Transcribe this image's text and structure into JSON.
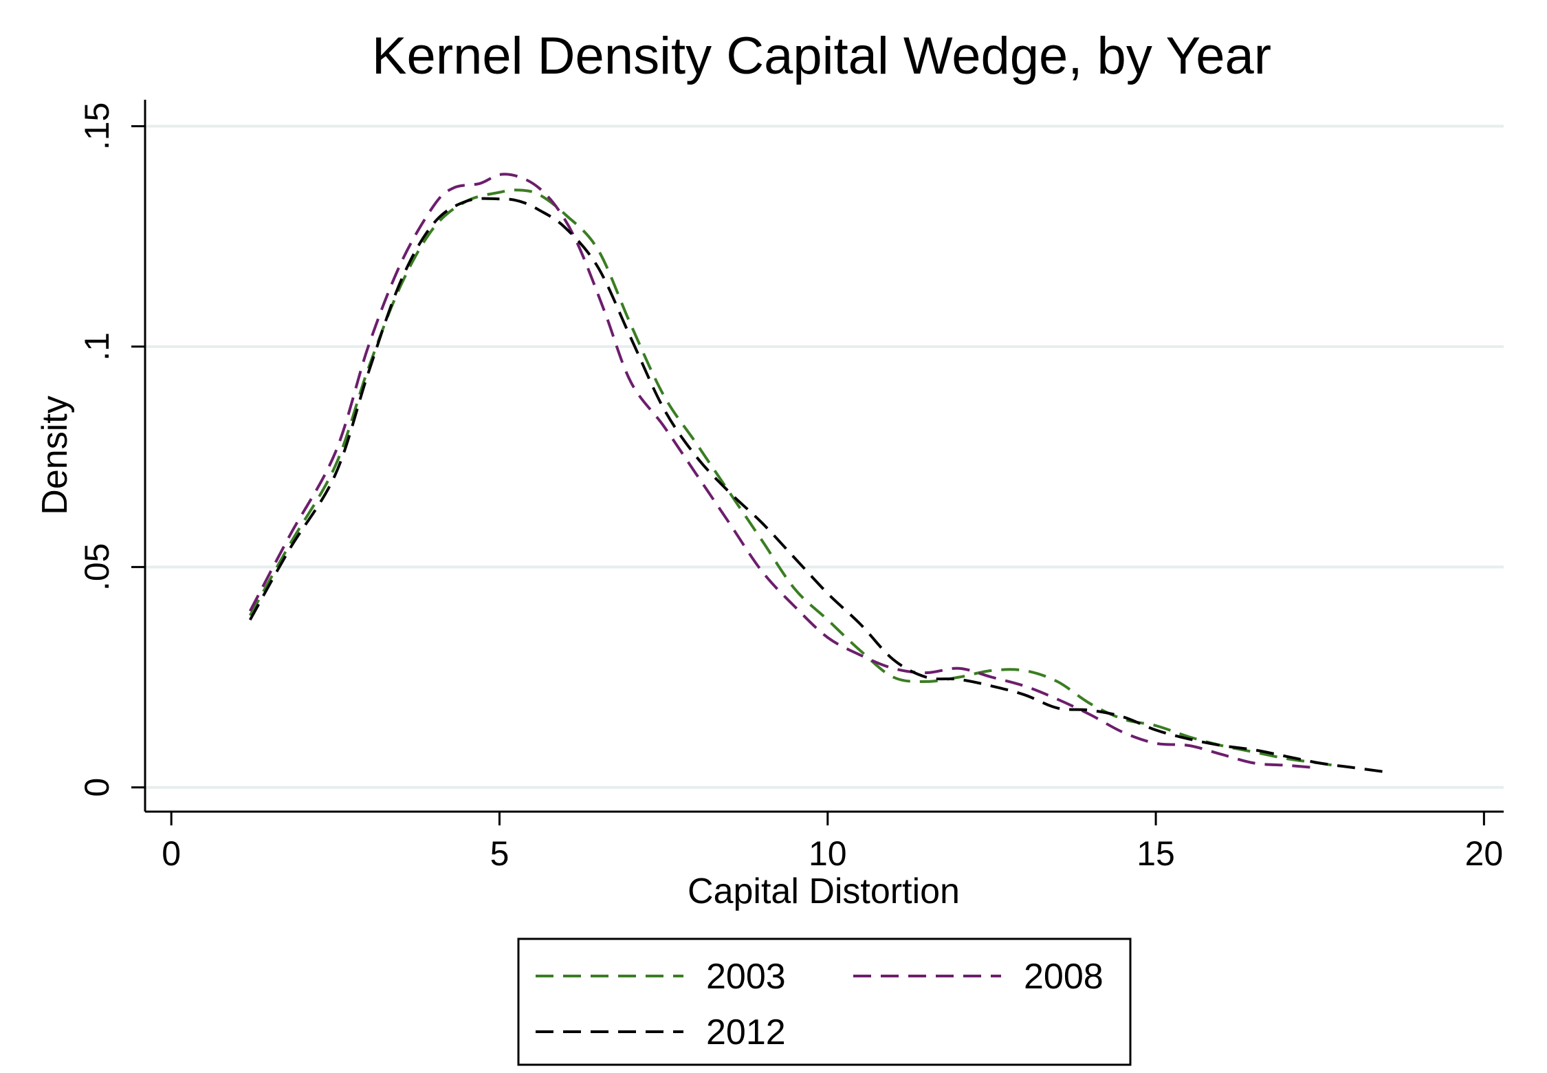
{
  "chart_data": {
    "type": "line",
    "title": "Kernel Density Capital Wedge, by Year",
    "xlabel": "Capital Distortion",
    "ylabel": "Density",
    "xlim": [
      -0.4,
      20.3
    ],
    "ylim": [
      -0.0055,
      0.156
    ],
    "xticks": [
      0,
      5,
      10,
      15,
      20
    ],
    "xtick_labels": [
      "0",
      "5",
      "10",
      "15",
      "20"
    ],
    "yticks": [
      0,
      0.05,
      0.1,
      0.15
    ],
    "ytick_labels": [
      "0",
      ".05",
      ".1",
      ".15"
    ],
    "grid": "horizontal",
    "legend_position": "bottom",
    "series": [
      {
        "name": "2003",
        "color": "#3a7d22",
        "x": [
          1.2,
          1.8,
          2.5,
          3.0,
          3.5,
          4.0,
          4.5,
          5.0,
          5.3,
          5.6,
          6.0,
          6.5,
          7.0,
          7.5,
          8.0,
          8.5,
          9.0,
          9.5,
          10.0,
          10.5,
          11.0,
          11.5,
          12.0,
          12.5,
          13.0,
          13.5,
          14.0,
          14.5,
          15.0,
          15.5,
          16.0,
          16.5,
          17.0,
          17.5,
          17.7
        ],
        "values": [
          0.039,
          0.055,
          0.073,
          0.095,
          0.114,
          0.127,
          0.133,
          0.135,
          0.1355,
          0.1345,
          0.13,
          0.122,
          0.105,
          0.089,
          0.078,
          0.067,
          0.056,
          0.045,
          0.038,
          0.031,
          0.025,
          0.024,
          0.025,
          0.0265,
          0.0265,
          0.024,
          0.019,
          0.0155,
          0.014,
          0.0115,
          0.0095,
          0.008,
          0.0065,
          0.0055,
          0.005
        ]
      },
      {
        "name": "2008",
        "color": "#6c1e6c",
        "x": [
          1.2,
          1.8,
          2.5,
          3.0,
          3.5,
          4.0,
          4.3,
          4.7,
          5.0,
          5.3,
          5.6,
          5.9,
          6.2,
          6.6,
          7.0,
          7.5,
          8.0,
          8.5,
          9.0,
          9.5,
          10.0,
          10.5,
          11.0,
          11.5,
          12.0,
          12.5,
          13.0,
          13.5,
          14.0,
          14.5,
          15.0,
          15.5,
          16.0,
          16.5,
          17.0,
          17.4
        ],
        "values": [
          0.04,
          0.057,
          0.076,
          0.1,
          0.119,
          0.132,
          0.136,
          0.137,
          0.139,
          0.1385,
          0.136,
          0.131,
          0.123,
          0.108,
          0.092,
          0.082,
          0.071,
          0.06,
          0.049,
          0.041,
          0.034,
          0.03,
          0.027,
          0.026,
          0.027,
          0.025,
          0.023,
          0.02,
          0.0165,
          0.0125,
          0.01,
          0.0095,
          0.0075,
          0.0055,
          0.005,
          0.0045
        ]
      },
      {
        "name": "2012",
        "color": "#000000",
        "x": [
          1.2,
          1.8,
          2.5,
          3.0,
          3.5,
          4.0,
          4.5,
          5.0,
          5.3,
          5.6,
          6.0,
          6.5,
          7.0,
          7.5,
          8.0,
          8.5,
          9.0,
          9.5,
          10.0,
          10.5,
          11.0,
          11.5,
          12.0,
          12.5,
          13.0,
          13.5,
          14.0,
          14.5,
          15.0,
          15.5,
          16.0,
          16.5,
          17.0,
          17.5,
          18.0,
          18.5
        ],
        "values": [
          0.038,
          0.054,
          0.071,
          0.094,
          0.115,
          0.128,
          0.133,
          0.1335,
          0.133,
          0.131,
          0.127,
          0.118,
          0.102,
          0.086,
          0.075,
          0.067,
          0.06,
          0.052,
          0.044,
          0.037,
          0.029,
          0.025,
          0.0245,
          0.023,
          0.021,
          0.018,
          0.0175,
          0.016,
          0.013,
          0.011,
          0.0095,
          0.0085,
          0.007,
          0.0055,
          0.0045,
          0.0035
        ]
      }
    ]
  }
}
